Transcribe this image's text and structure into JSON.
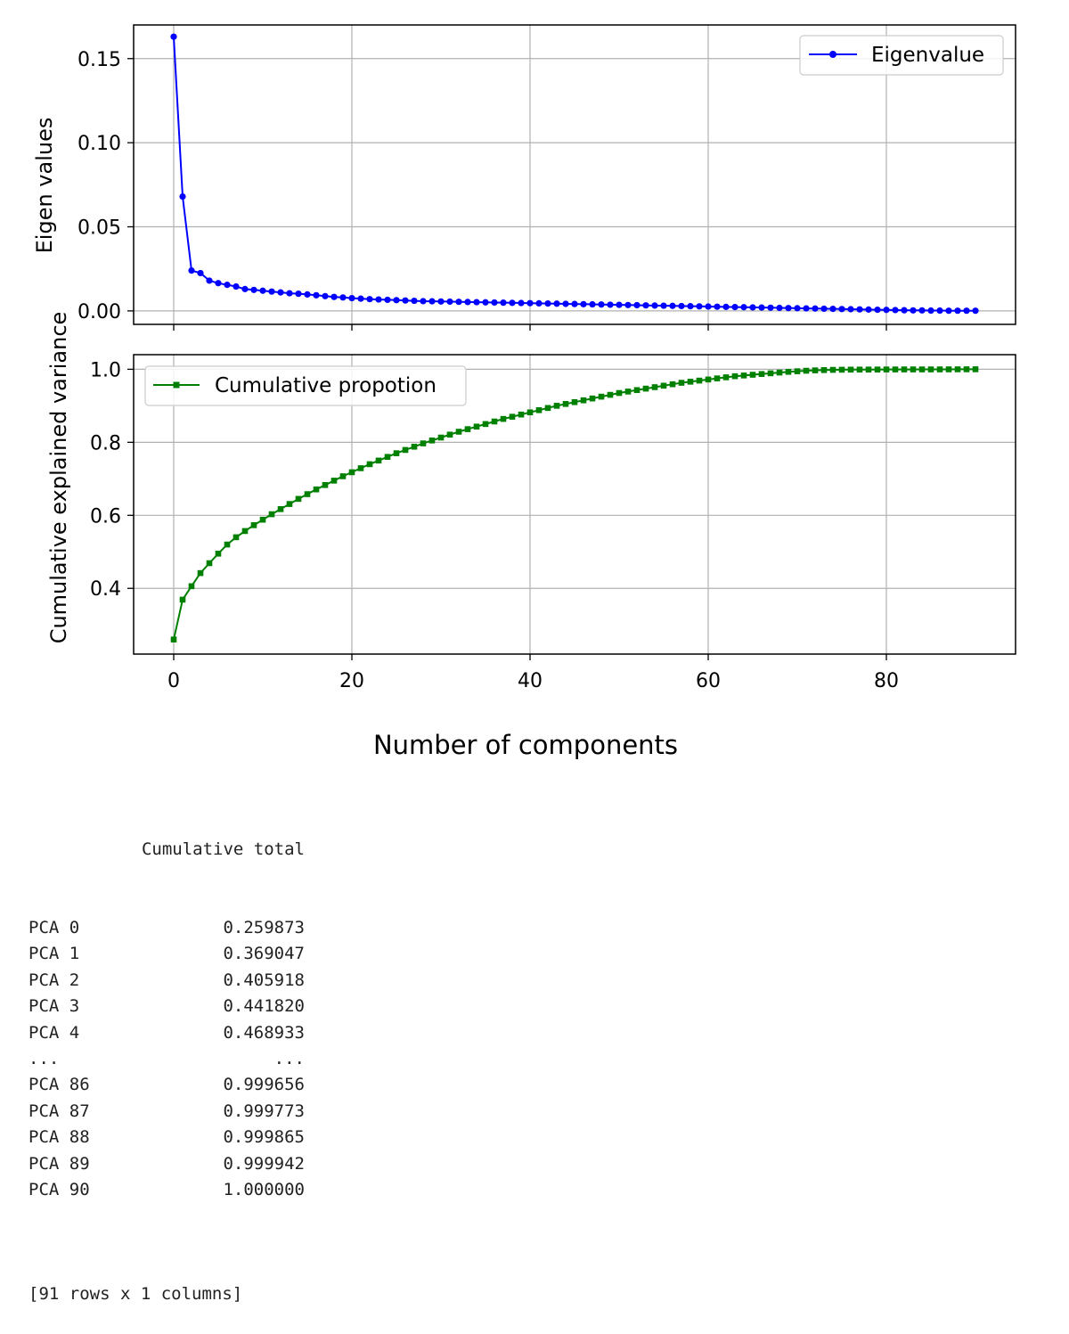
{
  "chart_data": [
    {
      "type": "line",
      "ylabel": "Eigen values",
      "xlim": [
        -4.5,
        94.5
      ],
      "ylim": [
        -0.008,
        0.17
      ],
      "xticks": [
        0,
        20,
        40,
        60,
        80
      ],
      "xtick_labels_visible": false,
      "yticks": [
        0.0,
        0.05,
        0.1,
        0.15
      ],
      "ytick_labels": [
        "0.00",
        "0.05",
        "0.10",
        "0.15"
      ],
      "grid": true,
      "legend": {
        "placement": "top-right",
        "entries": [
          "Eigenvalue"
        ]
      },
      "series": [
        {
          "name": "Eigenvalue",
          "color": "#0000ff",
          "marker": "dot",
          "x_start": 0,
          "values": [
            0.163,
            0.068,
            0.024,
            0.0225,
            0.018,
            0.0165,
            0.0155,
            0.0145,
            0.013,
            0.0125,
            0.012,
            0.0115,
            0.011,
            0.0105,
            0.0102,
            0.0098,
            0.0093,
            0.0088,
            0.0083,
            0.008,
            0.0076,
            0.0073,
            0.007,
            0.0068,
            0.0066,
            0.0064,
            0.0062,
            0.006,
            0.0058,
            0.0057,
            0.0056,
            0.0055,
            0.0054,
            0.0053,
            0.0052,
            0.0051,
            0.005,
            0.0049,
            0.0048,
            0.0047,
            0.0046,
            0.0045,
            0.0044,
            0.0043,
            0.0042,
            0.0041,
            0.004,
            0.0039,
            0.0038,
            0.0037,
            0.0036,
            0.0035,
            0.0034,
            0.0033,
            0.0032,
            0.0031,
            0.003,
            0.0029,
            0.0028,
            0.0027,
            0.0026,
            0.0025,
            0.0024,
            0.0023,
            0.0022,
            0.0021,
            0.002,
            0.0019,
            0.0018,
            0.0017,
            0.0016,
            0.0015,
            0.0014,
            0.0013,
            0.0012,
            0.0011,
            0.001,
            0.0009,
            0.0008,
            0.0007,
            0.0006,
            0.0005,
            0.0004,
            0.0003,
            0.0003,
            0.0002,
            0.0002,
            0.0001,
            0.0001,
            0.0001,
            0.0001
          ]
        }
      ]
    },
    {
      "type": "line",
      "ylabel": "Cumulative explained variance",
      "xlabel": "Number of components",
      "xlim": [
        -4.5,
        94.5
      ],
      "ylim": [
        0.22,
        1.04
      ],
      "xticks": [
        0,
        20,
        40,
        60,
        80
      ],
      "xtick_labels": [
        "0",
        "20",
        "40",
        "60",
        "80"
      ],
      "yticks": [
        0.4,
        0.6,
        0.8,
        1.0
      ],
      "ytick_labels": [
        "0.4",
        "0.6",
        "0.8",
        "1.0"
      ],
      "grid": true,
      "legend": {
        "placement": "top-left",
        "entries": [
          "Cumulative propotion"
        ]
      },
      "series": [
        {
          "name": "Cumulative propotion",
          "color": "#008000",
          "marker": "square",
          "x_start": 0,
          "values": [
            0.259873,
            0.369047,
            0.405918,
            0.44182,
            0.468933,
            0.495,
            0.52,
            0.54,
            0.557,
            0.573,
            0.588,
            0.603,
            0.617,
            0.631,
            0.645,
            0.658,
            0.671,
            0.683,
            0.695,
            0.707,
            0.718,
            0.729,
            0.74,
            0.75,
            0.76,
            0.77,
            0.779,
            0.788,
            0.797,
            0.805,
            0.813,
            0.821,
            0.829,
            0.836,
            0.843,
            0.85,
            0.857,
            0.864,
            0.87,
            0.876,
            0.882,
            0.888,
            0.894,
            0.9,
            0.905,
            0.91,
            0.915,
            0.92,
            0.925,
            0.93,
            0.935,
            0.939,
            0.943,
            0.947,
            0.951,
            0.955,
            0.959,
            0.963,
            0.966,
            0.969,
            0.972,
            0.975,
            0.978,
            0.981,
            0.983,
            0.985,
            0.987,
            0.989,
            0.991,
            0.993,
            0.9945,
            0.996,
            0.997,
            0.9978,
            0.9984,
            0.9988,
            0.999,
            0.9991,
            0.9992,
            0.9993,
            0.9994,
            0.9995,
            0.99955,
            0.9996,
            0.99962,
            0.99964,
            0.999656,
            0.999773,
            0.999865,
            0.999942,
            1.0
          ]
        }
      ]
    }
  ],
  "table": {
    "header": "Cumulative total",
    "rows": [
      {
        "index": "PCA 0",
        "value": "0.259873"
      },
      {
        "index": "PCA 1",
        "value": "0.369047"
      },
      {
        "index": "PCA 2",
        "value": "0.405918"
      },
      {
        "index": "PCA 3",
        "value": "0.441820"
      },
      {
        "index": "PCA 4",
        "value": "0.468933"
      },
      {
        "index": "...",
        "value": "..."
      },
      {
        "index": "PCA 86",
        "value": "0.999656"
      },
      {
        "index": "PCA 87",
        "value": "0.999773"
      },
      {
        "index": "PCA 88",
        "value": "0.999865"
      },
      {
        "index": "PCA 89",
        "value": "0.999942"
      },
      {
        "index": "PCA 90",
        "value": "1.000000"
      }
    ],
    "footer": "[91 rows x 1 columns]"
  }
}
